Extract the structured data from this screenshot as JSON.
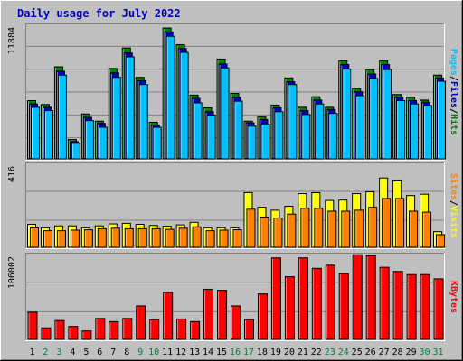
{
  "chart_data": {
    "title": "Daily usage for July 2022",
    "days": [
      "1",
      "2",
      "3",
      "4",
      "5",
      "6",
      "7",
      "8",
      "9",
      "10",
      "11",
      "12",
      "13",
      "14",
      "15",
      "16",
      "17",
      "18",
      "19",
      "20",
      "21",
      "22",
      "23",
      "24",
      "25",
      "26",
      "27",
      "28",
      "29",
      "30",
      "31"
    ],
    "weekend_days": [
      "2",
      "3",
      "9",
      "10",
      "16",
      "17",
      "23",
      "24",
      "30",
      "31"
    ],
    "colors": {
      "background": "#c0c0c0",
      "plot": "#bfbfbf",
      "title": "#0000c0",
      "hits": "#008000",
      "files": "#0000c0",
      "pages": "#00c0ff",
      "visits": "#ffff00",
      "sites": "#ff8000",
      "kbytes": "#ff0000",
      "weekday_label": "#000000",
      "weekend_label": "#008040"
    },
    "charts": [
      {
        "type": "bar",
        "name": "hits-files-pages",
        "max_label": "11884",
        "ymax": 11884,
        "right_label": [
          "Pages",
          "/",
          "Files",
          "/",
          "Hits"
        ],
        "series": [
          {
            "name": "Hits",
            "values": [
              5250,
              4900,
              8300,
              1750,
              4050,
              3400,
              8150,
              10000,
              7350,
              3300,
              11800,
              10300,
              5750,
              4600,
              9000,
              5900,
              3400,
              3800,
              4850,
              7300,
              4650,
              5600,
              4650,
              8850,
              6350,
              8050,
              8850,
              5800,
              5550,
              5300,
              7550
            ]
          },
          {
            "name": "Files",
            "values": [
              4950,
              4650,
              7900,
              1550,
              3750,
              3200,
              7750,
              9550,
              7050,
              3050,
              11450,
              9950,
              5450,
              4250,
              8550,
              5550,
              3250,
              3550,
              4600,
              6950,
              4350,
              5300,
              4450,
              8500,
              6050,
              7650,
              8500,
              5550,
              5250,
              5100,
              7300
            ]
          },
          {
            "name": "Pages",
            "values": [
              4650,
              4350,
              7550,
              1400,
              3450,
              2850,
              7350,
              9200,
              6700,
              2850,
              11050,
              9600,
              5050,
              3950,
              8200,
              5200,
              2950,
              3150,
              4250,
              6700,
              4000,
              4950,
              4100,
              8100,
              5700,
              7250,
              8050,
              5250,
              4950,
              4800,
              7000
            ]
          }
        ]
      },
      {
        "type": "bar",
        "name": "visits-sites",
        "max_label": "416",
        "ymax": 416,
        "right_label": [
          "Sites",
          "/",
          "Visits"
        ],
        "series": [
          {
            "name": "Visits",
            "values": [
              118,
              100,
              110,
              110,
              100,
              110,
              120,
              123,
              118,
              112,
              108,
              115,
              128,
              100,
              100,
              100,
              280,
              205,
              190,
              210,
              275,
              280,
              240,
              242,
              275,
              284,
              355,
              340,
              265,
              272,
              80
            ]
          },
          {
            "name": "Sites",
            "values": [
              100,
              85,
              85,
              88,
              90,
              95,
              98,
              95,
              95,
              95,
              92,
              98,
              105,
              85,
              88,
              90,
              195,
              155,
              150,
              170,
              200,
              200,
              185,
              185,
              190,
              205,
              250,
              250,
              185,
              180,
              65
            ]
          }
        ]
      },
      {
        "type": "bar",
        "name": "kbytes",
        "max_label": "106002",
        "ymax": 106002,
        "right_label": [
          "KBytes"
        ],
        "series": [
          {
            "name": "KBytes",
            "values": [
              34700,
              14700,
              24000,
              16500,
              10700,
              26700,
              22700,
              26700,
              42700,
              25300,
              60000,
              26000,
              22700,
              64000,
              62700,
              42700,
              25300,
              58000,
              104000,
              80000,
              104000,
              90700,
              94700,
              84000,
              108000,
              106700,
              92000,
              86700,
              82700,
              82700,
              77300
            ]
          }
        ]
      }
    ]
  }
}
